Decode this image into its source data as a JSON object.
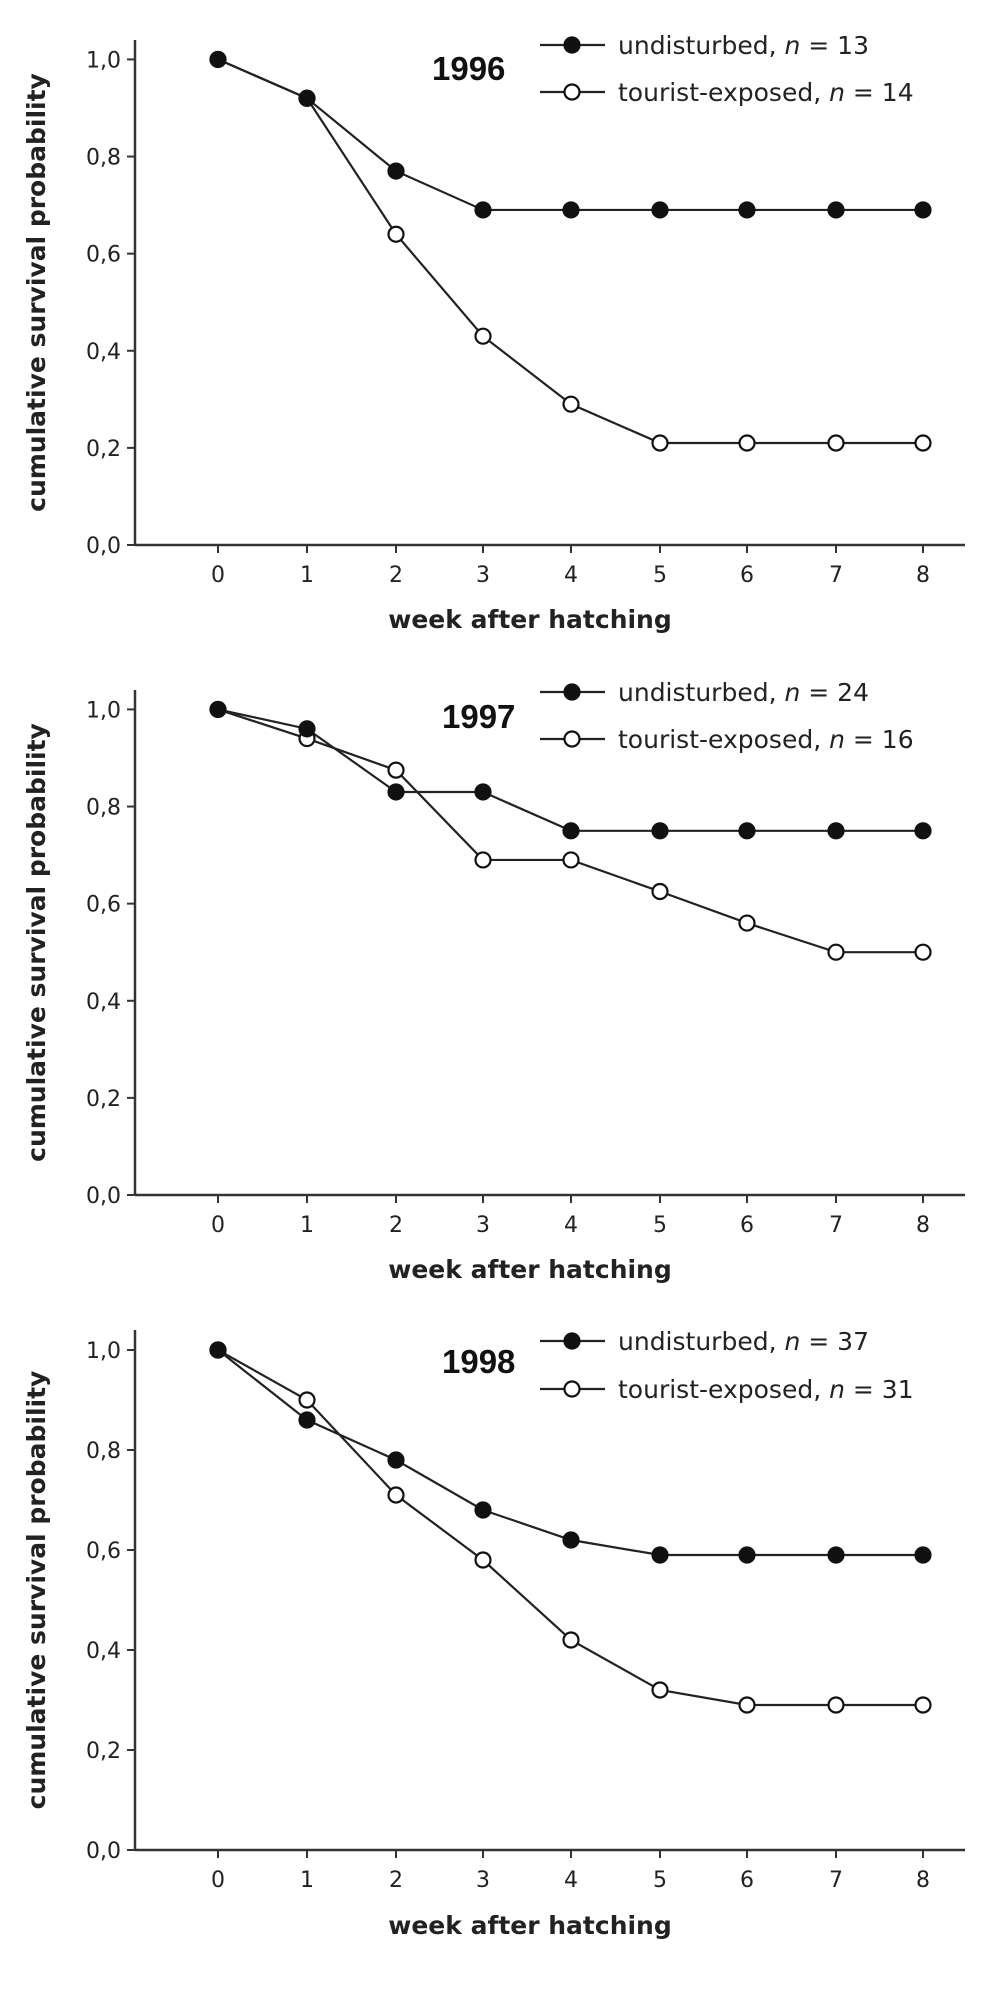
{
  "chart_data": [
    {
      "type": "line",
      "title": "1996",
      "xlabel": "week after hatching",
      "ylabel": "cumulative survival probability",
      "x": [
        0,
        1,
        2,
        3,
        4,
        5,
        6,
        7,
        8
      ],
      "xlim": [
        -1,
        8.5
      ],
      "ylim": [
        0,
        1.04
      ],
      "x_ticks": [
        "0",
        "1",
        "2",
        "3",
        "4",
        "5",
        "6",
        "7",
        "8"
      ],
      "y_ticks": [
        "0,0",
        "0,2",
        "0,4",
        "0,6",
        "0,8",
        "1,0"
      ],
      "grid": false,
      "legend_position": "top-right",
      "series": [
        {
          "label_prefix": "undisturbed, ",
          "n_symbol": "n",
          "n_value": " = 13",
          "marker": "filled-circle",
          "values": [
            1.0,
            0.92,
            0.77,
            0.69,
            0.69,
            0.69,
            0.69,
            0.69,
            0.69
          ]
        },
        {
          "label_prefix": "tourist-exposed, ",
          "n_symbol": "n",
          "n_value": " = 14",
          "marker": "open-circle",
          "values": [
            1.0,
            0.92,
            0.64,
            0.43,
            0.29,
            0.21,
            0.21,
            0.21,
            0.21
          ]
        }
      ]
    },
    {
      "type": "line",
      "title": "1997",
      "xlabel": "week after hatching",
      "ylabel": "cumulative survival probability",
      "x": [
        0,
        1,
        2,
        3,
        4,
        5,
        6,
        7,
        8
      ],
      "xlim": [
        -1,
        8.5
      ],
      "ylim": [
        0,
        1.04
      ],
      "x_ticks": [
        "0",
        "1",
        "2",
        "3",
        "4",
        "5",
        "6",
        "7",
        "8"
      ],
      "y_ticks": [
        "0,0",
        "0,2",
        "0,4",
        "0,6",
        "0,8",
        "1,0"
      ],
      "grid": false,
      "legend_position": "top-right",
      "series": [
        {
          "label_prefix": "undisturbed, ",
          "n_symbol": "n",
          "n_value": " = 24",
          "marker": "filled-circle",
          "values": [
            1.0,
            0.96,
            0.83,
            0.83,
            0.75,
            0.75,
            0.75,
            0.75,
            0.75
          ]
        },
        {
          "label_prefix": "tourist-exposed, ",
          "n_symbol": "n",
          "n_value": " = 16",
          "marker": "open-circle",
          "values": [
            1.0,
            0.94,
            0.875,
            0.69,
            0.69,
            0.625,
            0.56,
            0.5,
            0.5
          ]
        }
      ]
    },
    {
      "type": "line",
      "title": "1998",
      "xlabel": "week after hatching",
      "ylabel": "cumulative survival probability",
      "x": [
        0,
        1,
        2,
        3,
        4,
        5,
        6,
        7,
        8
      ],
      "xlim": [
        -1,
        8.5
      ],
      "ylim": [
        0,
        1.04
      ],
      "x_ticks": [
        "0",
        "1",
        "2",
        "3",
        "4",
        "5",
        "6",
        "7",
        "8"
      ],
      "y_ticks": [
        "0,0",
        "0,2",
        "0,4",
        "0,6",
        "0,8",
        "1,0"
      ],
      "grid": false,
      "legend_position": "top-right",
      "series": [
        {
          "label_prefix": "undisturbed, ",
          "n_symbol": "n",
          "n_value": " = 37",
          "marker": "filled-circle",
          "values": [
            1.0,
            0.86,
            0.78,
            0.68,
            0.62,
            0.59,
            0.59,
            0.59,
            0.59
          ]
        },
        {
          "label_prefix": "tourist-exposed, ",
          "n_symbol": "n",
          "n_value": " = 31",
          "marker": "open-circle",
          "values": [
            1.0,
            0.9,
            0.71,
            0.58,
            0.42,
            0.32,
            0.29,
            0.29,
            0.29
          ]
        }
      ]
    }
  ]
}
